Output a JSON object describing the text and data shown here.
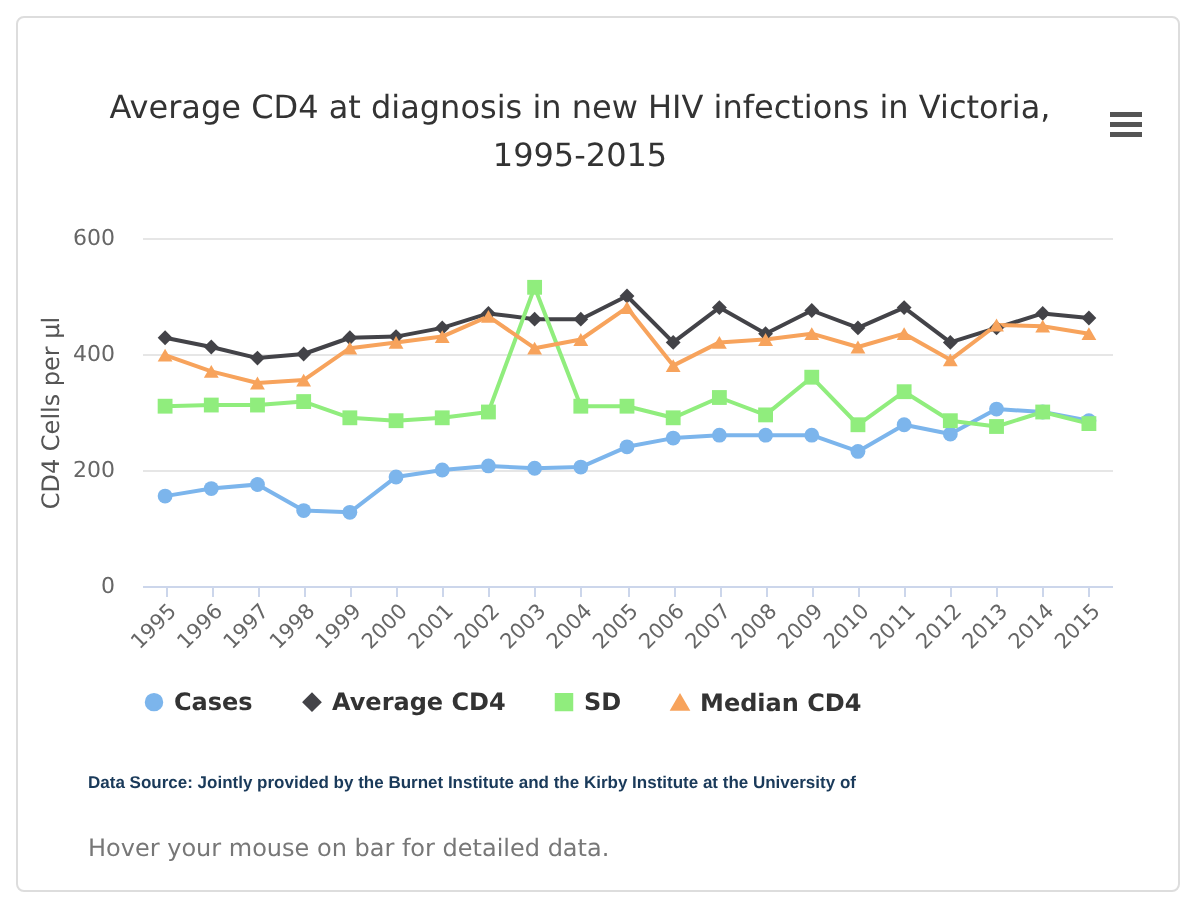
{
  "chart_data": {
    "type": "line",
    "title": "Average CD4 at diagnosis in new HIV infections in Victoria, 1995-2015",
    "ylabel": "CD4 Cells per µl",
    "categories": [
      "1995",
      "1996",
      "1997",
      "1998",
      "1999",
      "2000",
      "2001",
      "2002",
      "2003",
      "2004",
      "2005",
      "2006",
      "2007",
      "2008",
      "2009",
      "2010",
      "2011",
      "2012",
      "2013",
      "2014",
      "2015"
    ],
    "series": [
      {
        "name": "Cases",
        "color": "#7cb5ec",
        "marker": "circle",
        "values": [
          155,
          168,
          175,
          130,
          127,
          188,
          200,
          207,
          203,
          205,
          240,
          255,
          260,
          260,
          260,
          232,
          278,
          262,
          305,
          300,
          285
        ]
      },
      {
        "name": "Average CD4",
        "color": "#434348",
        "marker": "diamond",
        "values": [
          428,
          412,
          393,
          400,
          428,
          430,
          445,
          470,
          460,
          460,
          500,
          420,
          480,
          435,
          475,
          445,
          480,
          420,
          445,
          470,
          462
        ]
      },
      {
        "name": "SD",
        "color": "#90ed7d",
        "marker": "square",
        "values": [
          310,
          312,
          312,
          318,
          290,
          285,
          290,
          300,
          515,
          310,
          310,
          290,
          325,
          295,
          360,
          278,
          335,
          285,
          275,
          300,
          280
        ]
      },
      {
        "name": "Median CD4",
        "color": "#f7a35c",
        "marker": "triangle",
        "values": [
          398,
          370,
          350,
          355,
          410,
          420,
          430,
          465,
          410,
          425,
          480,
          380,
          420,
          425,
          435,
          412,
          435,
          390,
          450,
          448,
          435
        ]
      }
    ],
    "ylim": [
      0,
      600
    ],
    "yticks": [
      0,
      200,
      400,
      600
    ],
    "grid": "y",
    "legend": "bottom",
    "line_style": "solid",
    "annotations": [
      "Data Source: Jointly provided by the Burnet Institute and the Kirby Institute at the University of",
      "Hover your mouse on bar for detailed data."
    ]
  }
}
